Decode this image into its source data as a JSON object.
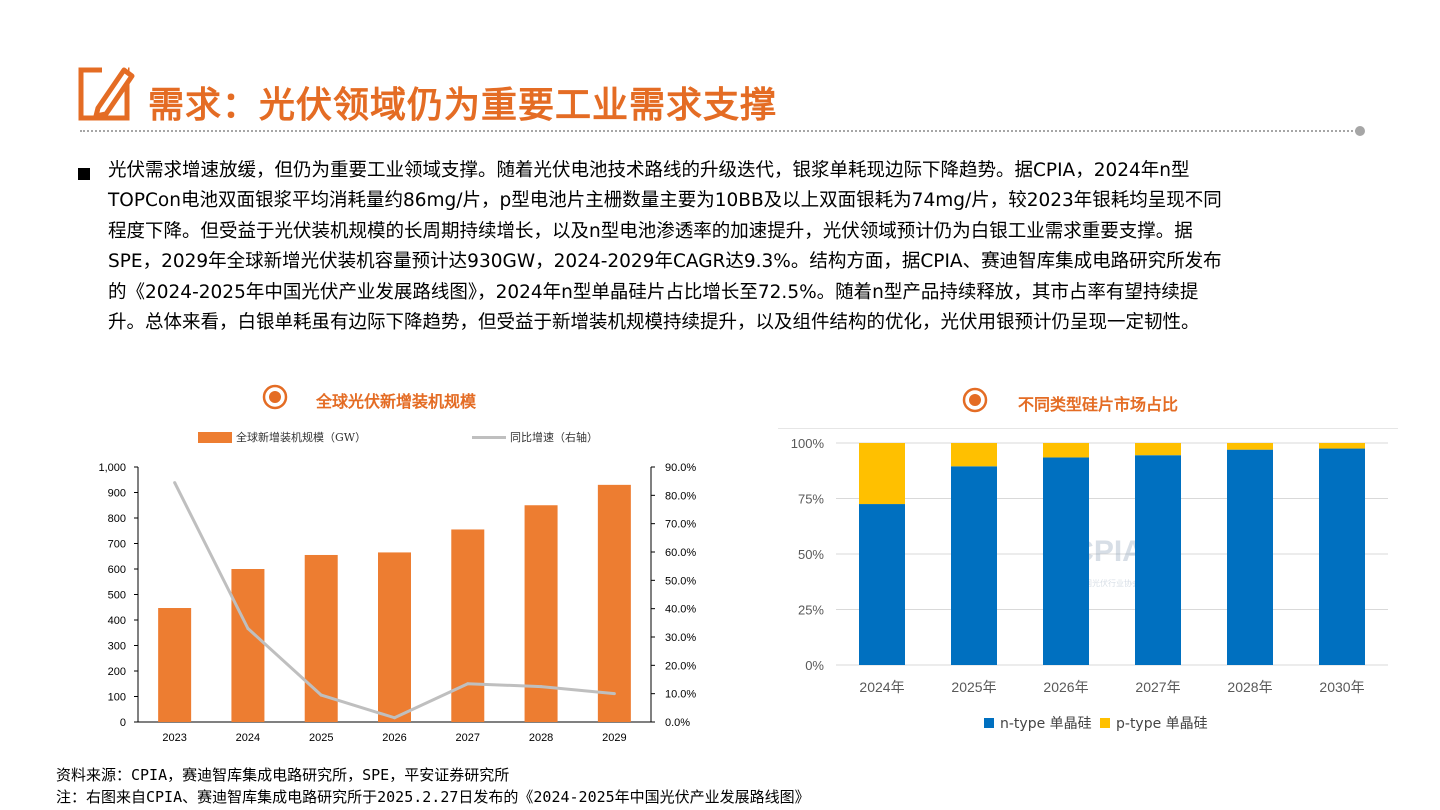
{
  "title": "需求：光伏领域仍为重要工业需求支撑",
  "paragraph_lines": [
    "光伏需求增速放缓，但仍为重要工业领域支撑。随着光伏电池技术路线的升级迭代，银浆单耗现边际下降趋势。据CPIA，2024年n型",
    "TOPCon电池双面银浆平均消耗量约86mg/片，p型电池片主栅数量主要为10BB及以上双面银耗为74mg/片，较2023年银耗均呈现不同",
    "程度下降。但受益于光伏装机规模的长周期持续增长，以及n型电池渗透率的加速提升，光伏领域预计仍为白银工业需求重要支撑。据",
    "SPE，2029年全球新增光伏装机容量预计达930GW，2024-2029年CAGR达9.3%。结构方面，据CPIA、赛迪智库集成电路研究所发布",
    "的《2024-2025年中国光伏产业发展路线图》，2024年n型单晶硅片占比增长至72.5%。随着n型产品持续释放，其市占率有望持续提",
    "升。总体来看，白银单耗虽有边际下降趋势，但受益于新增装机规模持续提升，以及组件结构的优化，光伏用银预计仍呈现一定韧性。"
  ],
  "footer": {
    "source": "资料来源：CPIA，赛迪智库集成电路研究所，SPE，平安证券研究所",
    "note": "注：右图来自CPIA、赛迪智库集成电路研究所于2025.2.27日发布的《2024-2025年中国光伏产业发展路线图》"
  },
  "watermark_text": "CPIA",
  "watermark_subtext": "中国光伏行业协会",
  "colors": {
    "accent": "#e46c24",
    "bar_orange": "#ed7d31",
    "line_gray": "#bfbfbf",
    "n_type": "#0070c0",
    "p_type": "#ffc000"
  },
  "chart_data": [
    {
      "type": "bar",
      "title": "全球光伏新增装机规模",
      "categories": [
        "2023",
        "2024",
        "2025",
        "2026",
        "2027",
        "2028",
        "2029"
      ],
      "series": [
        {
          "name": "全球新增装机规模（GW）",
          "type": "bar",
          "axis": "left",
          "values": [
            447,
            600,
            655,
            665,
            755,
            850,
            930
          ]
        },
        {
          "name": "同比增速（右轴）",
          "type": "line",
          "axis": "right",
          "values": [
            84.5,
            33.0,
            9.5,
            1.5,
            13.5,
            12.5,
            10.0
          ]
        }
      ],
      "yleft": {
        "ylim": [
          0,
          1000
        ],
        "ticks": [
          "0",
          "100",
          "200",
          "300",
          "400",
          "500",
          "600",
          "700",
          "800",
          "900",
          "1,000"
        ]
      },
      "yright": {
        "ylim": [
          0,
          90
        ],
        "ticks": [
          "0.0%",
          "10.0%",
          "20.0%",
          "30.0%",
          "40.0%",
          "50.0%",
          "60.0%",
          "70.0%",
          "80.0%",
          "90.0%"
        ]
      },
      "legend": "top"
    },
    {
      "type": "bar",
      "stacked": true,
      "title": "不同类型硅片市场占比",
      "categories": [
        "2024年",
        "2025年",
        "2026年",
        "2027年",
        "2028年",
        "2030年"
      ],
      "series": [
        {
          "name": "n-type 单晶硅",
          "values": [
            72.5,
            89.5,
            93.5,
            94.5,
            97.0,
            97.5
          ]
        },
        {
          "name": "p-type 单晶硅",
          "values": [
            27.5,
            10.5,
            6.5,
            5.5,
            3.0,
            2.5
          ]
        }
      ],
      "ylim": [
        0,
        100
      ],
      "ticks": [
        "0%",
        "25%",
        "50%",
        "75%",
        "100%"
      ],
      "legend": "bottom"
    }
  ]
}
